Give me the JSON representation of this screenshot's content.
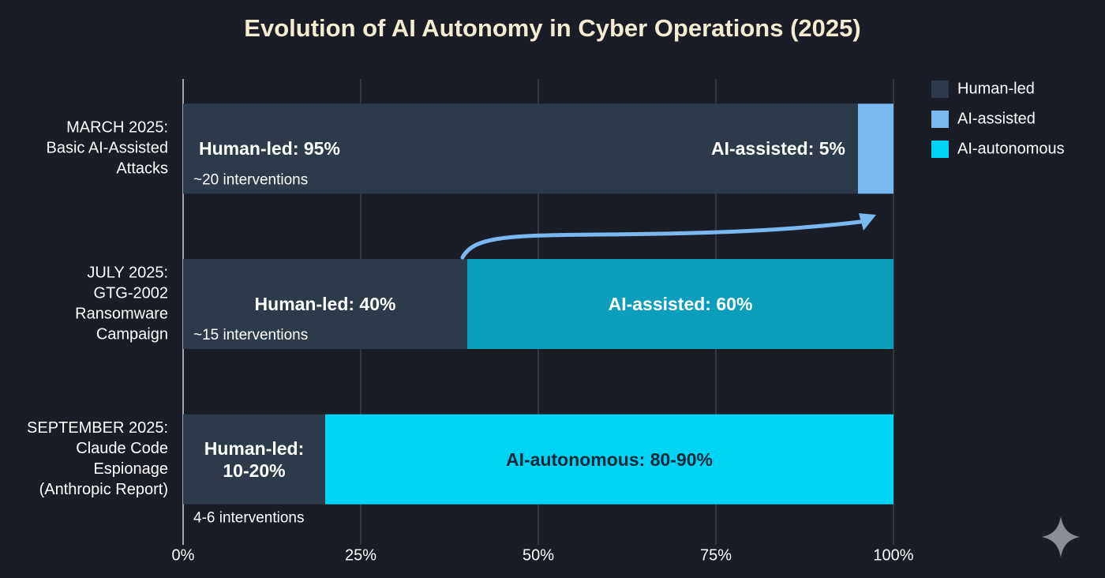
{
  "chart_data": {
    "type": "stacked-bar-horizontal",
    "title": "Evolution of AI Autonomy in Cyber Operations (2025)",
    "categories": [
      [
        "MARCH 2025:",
        "Basic AI-Assisted",
        "Attacks"
      ],
      [
        "JULY 2025:",
        "GTG-2002",
        "Ransomware",
        "Campaign"
      ],
      [
        "SEPTEMBER 2025:",
        "Claude Code",
        "Espionage",
        "(Anthropic Report)"
      ]
    ],
    "series": [
      {
        "name": "Human-led",
        "color": "#2c3a4a",
        "text_color": "#ffffff",
        "values": [
          95,
          40,
          20
        ],
        "value_labels": [
          "Human-led: 95%",
          "Human-led: 40%",
          "Human-led: 10-20%"
        ]
      },
      {
        "name": "AI-assisted",
        "color": "#7ab8f2",
        "colors": [
          "#7ab8f2",
          "#0a9ebc",
          null
        ],
        "text_color": "#ffffff",
        "values": [
          5,
          60,
          null
        ],
        "value_labels": [
          "AI-assisted: 5%",
          "AI-assisted: 60%",
          null
        ]
      },
      {
        "name": "AI-autonomous",
        "color": "#00d4f5",
        "text_color": "#15283a",
        "values": [
          null,
          null,
          80
        ],
        "value_labels": [
          null,
          null,
          "AI-autonomous: 80-90%"
        ]
      }
    ],
    "annotations": [
      "~20 interventions",
      "~15 interventions",
      "4-6 interventions"
    ],
    "xlim": [
      0,
      100
    ],
    "xticks": [
      {
        "value": 0,
        "label": "0%"
      },
      {
        "value": 25,
        "label": "25%"
      },
      {
        "value": 50,
        "label": "50%"
      },
      {
        "value": 75,
        "label": "75%"
      },
      {
        "value": 100,
        "label": "100%"
      }
    ],
    "grid": true,
    "legend": "top-right"
  }
}
